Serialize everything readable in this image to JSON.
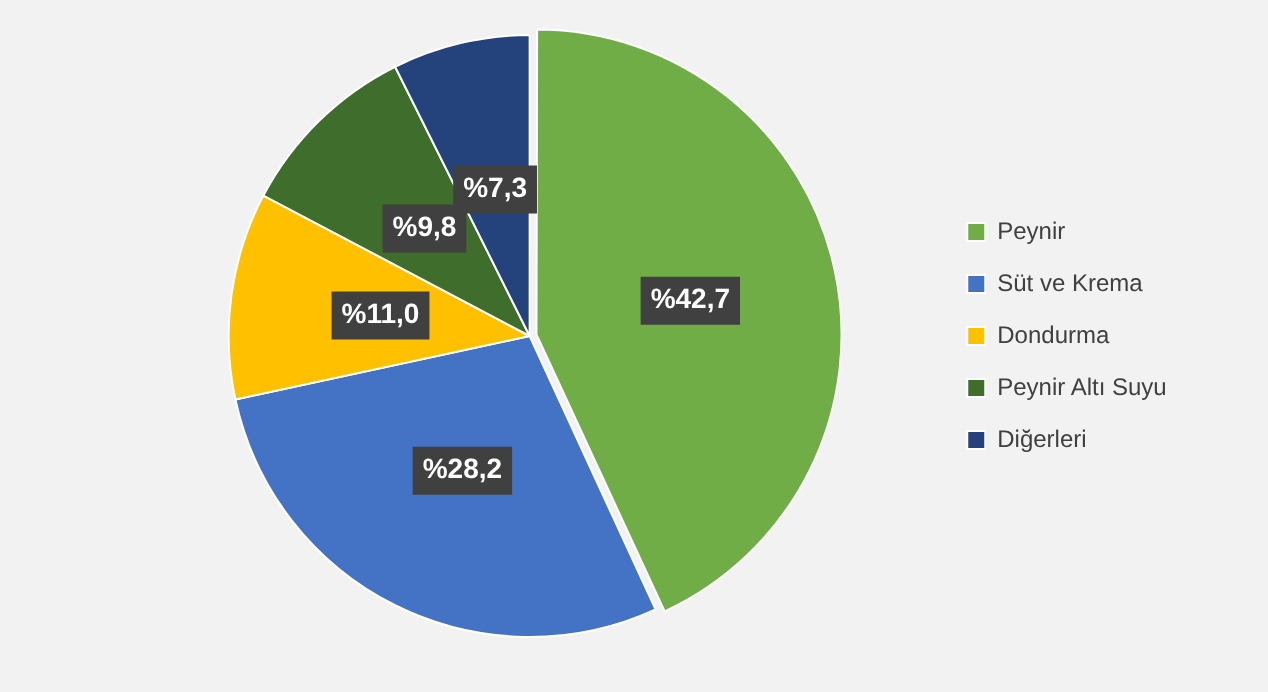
{
  "chart_data": {
    "type": "pie",
    "categories": [
      "Peynir",
      "Süt ve Krema",
      "Dondurma",
      "Peynir Altı Suyu",
      "Diğerleri"
    ],
    "values": [
      42.7,
      28.2,
      11.0,
      9.8,
      7.3
    ],
    "colors": [
      "#70ad47",
      "#4472c4",
      "#ffc000",
      "#3f6d2b",
      "#24427c"
    ],
    "value_labels": [
      "%42,7",
      "%28,2",
      "%11,0",
      "%9,8",
      "%7,3"
    ],
    "legend": "right"
  }
}
